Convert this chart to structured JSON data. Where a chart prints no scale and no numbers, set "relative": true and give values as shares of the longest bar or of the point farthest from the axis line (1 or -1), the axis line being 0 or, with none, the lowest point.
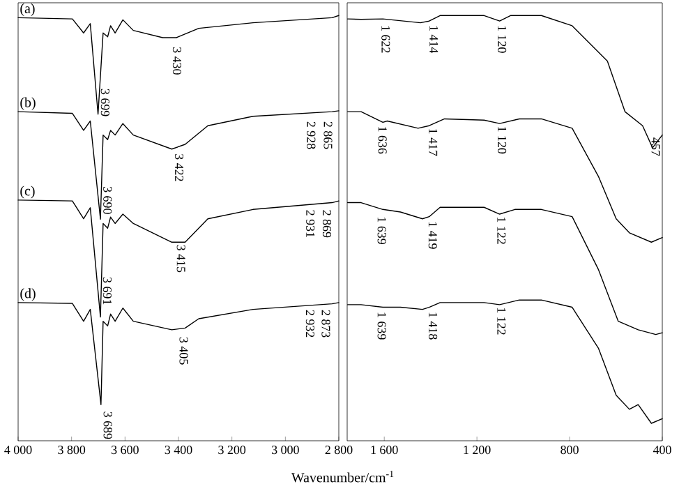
{
  "chart_data": [
    {
      "type": "line",
      "relative": true,
      "xlabel": "Wavenumber/cm$^{-1}$",
      "xlim": [
        4000,
        2800
      ],
      "xticks": [
        {
          "value": 4000,
          "label": "4 000"
        },
        {
          "value": 3800,
          "label": "3 800"
        },
        {
          "value": 3600,
          "label": "3 600"
        },
        {
          "value": 3400,
          "label": "3 400"
        },
        {
          "value": 3200,
          "label": "3 200"
        },
        {
          "value": 3000,
          "label": "3 000"
        },
        {
          "value": 2800,
          "label": "2 800"
        }
      ],
      "series": [
        {
          "name": "(a)",
          "color": "#000000",
          "x": [
            4000,
            3797,
            3755,
            3730,
            3701,
            3682,
            3665,
            3654,
            3637,
            3608,
            3569,
            3459,
            3408,
            3324,
            3121,
            2825,
            2800
          ],
          "values": [
            0.995,
            0.992,
            0.959,
            0.981,
            0.768,
            0.959,
            0.95,
            0.976,
            0.959,
            0.99,
            0.965,
            0.948,
            0.948,
            0.97,
            0.983,
            0.995,
            1.0
          ]
        },
        {
          "name": "(b)",
          "color": "#000000",
          "x": [
            4000,
            3797,
            3755,
            3730,
            3692,
            3682,
            3665,
            3654,
            3637,
            3608,
            3569,
            3425,
            3375,
            3290,
            3121,
            2825,
            2800
          ],
          "values": [
            0.774,
            0.77,
            0.73,
            0.752,
            0.521,
            0.719,
            0.708,
            0.73,
            0.719,
            0.746,
            0.719,
            0.686,
            0.697,
            0.741,
            0.763,
            0.774,
            0.776
          ]
        },
        {
          "name": "(c)",
          "color": "#000000",
          "x": [
            4000,
            3797,
            3755,
            3730,
            3692,
            3682,
            3665,
            3654,
            3637,
            3608,
            3569,
            3425,
            3375,
            3290,
            3121,
            2825,
            2800
          ],
          "values": [
            0.566,
            0.564,
            0.522,
            0.548,
            0.291,
            0.511,
            0.5,
            0.526,
            0.511,
            0.533,
            0.511,
            0.467,
            0.467,
            0.522,
            0.544,
            0.56,
            0.564
          ]
        },
        {
          "name": "(d)",
          "color": "#000000",
          "x": [
            4000,
            3797,
            3755,
            3730,
            3690,
            3682,
            3665,
            3654,
            3637,
            3608,
            3569,
            3425,
            3375,
            3324,
            3121,
            2825,
            2800
          ],
          "values": [
            0.325,
            0.323,
            0.281,
            0.309,
            0.085,
            0.281,
            0.27,
            0.298,
            0.281,
            0.312,
            0.281,
            0.261,
            0.265,
            0.287,
            0.309,
            0.322,
            0.325
          ]
        }
      ],
      "annotations": [
        {
          "text": "3 430",
          "x": 3430,
          "y": 0.932
        },
        {
          "text": "3 699",
          "x": 3699,
          "y": 0.834
        },
        {
          "text": "3 422",
          "x": 3422,
          "y": 0.681
        },
        {
          "text": "2 928",
          "x": 2928,
          "y": 0.757
        },
        {
          "text": "2 865",
          "x": 2865,
          "y": 0.757
        },
        {
          "text": "3 690",
          "x": 3690,
          "y": 0.604
        },
        {
          "text": "3 415",
          "x": 3415,
          "y": 0.467
        },
        {
          "text": "2 931",
          "x": 2931,
          "y": 0.549
        },
        {
          "text": "2 869",
          "x": 2869,
          "y": 0.549
        },
        {
          "text": "3 691",
          "x": 3691,
          "y": 0.391
        },
        {
          "text": "3 405",
          "x": 3405,
          "y": 0.25
        },
        {
          "text": "2 932",
          "x": 2932,
          "y": 0.314
        },
        {
          "text": "2 873",
          "x": 2873,
          "y": 0.314
        },
        {
          "text": "3 689",
          "x": 3689,
          "y": 0.075
        }
      ]
    },
    {
      "type": "line",
      "relative": true,
      "xlim": [
        1760,
        400
      ],
      "xticks": [
        {
          "value": 1600,
          "label": "1 600"
        },
        {
          "value": 1200,
          "label": "1 200"
        },
        800,
        400
      ],
      "series": [
        {
          "color": "#000000",
          "x": [
            1758,
            1700,
            1606,
            1444,
            1406,
            1359,
            1169,
            1102,
            1055,
            922,
            789,
            637,
            561,
            485,
            442,
            400
          ],
          "values": [
            0.992,
            0.991,
            0.992,
            0.983,
            0.987,
            1.0,
            1.0,
            0.987,
            1.0,
            1.0,
            0.976,
            0.893,
            0.774,
            0.741,
            0.689,
            0.719
          ]
        },
        {
          "color": "#000000",
          "x": [
            1758,
            1700,
            1606,
            1587,
            1454,
            1406,
            1340,
            1169,
            1102,
            1017,
            922,
            789,
            675,
            599,
            542,
            447,
            400
          ],
          "values": [
            0.774,
            0.774,
            0.749,
            0.752,
            0.735,
            0.741,
            0.757,
            0.754,
            0.746,
            0.757,
            0.757,
            0.735,
            0.621,
            0.522,
            0.489,
            0.467,
            0.478
          ]
        },
        {
          "color": "#000000",
          "x": [
            1758,
            1700,
            1606,
            1530,
            1435,
            1406,
            1359,
            1169,
            1102,
            1036,
            922,
            789,
            675,
            590,
            504,
            428,
            400
          ],
          "values": [
            0.56,
            0.56,
            0.544,
            0.538,
            0.522,
            0.527,
            0.549,
            0.549,
            0.533,
            0.544,
            0.544,
            0.527,
            0.402,
            0.281,
            0.261,
            0.25,
            0.254
          ]
        },
        {
          "color": "#000000",
          "x": [
            1758,
            1700,
            1606,
            1530,
            1435,
            1406,
            1359,
            1169,
            1102,
            1017,
            922,
            789,
            675,
            599,
            542,
            504,
            447,
            400
          ],
          "values": [
            0.32,
            0.32,
            0.314,
            0.314,
            0.309,
            0.314,
            0.325,
            0.325,
            0.32,
            0.331,
            0.331,
            0.314,
            0.217,
            0.107,
            0.074,
            0.085,
            0.041,
            0.052
          ]
        }
      ],
      "annotations": [
        {
          "text": "1 622",
          "x": 1622,
          "y": 0.983
        },
        {
          "text": "1 414",
          "x": 1414,
          "y": 0.983
        },
        {
          "text": "1 120",
          "x": 1120,
          "y": 0.983
        },
        {
          "text": "457",
          "x": 457,
          "y": 0.719
        },
        {
          "text": "1 636",
          "x": 1636,
          "y": 0.746
        },
        {
          "text": "1 417",
          "x": 1417,
          "y": 0.741
        },
        {
          "text": "1 120",
          "x": 1120,
          "y": 0.746
        },
        {
          "text": "1 639",
          "x": 1639,
          "y": 0.533
        },
        {
          "text": "1 419",
          "x": 1419,
          "y": 0.522
        },
        {
          "text": "1 122",
          "x": 1122,
          "y": 0.533
        },
        {
          "text": "1 639",
          "x": 1639,
          "y": 0.309
        },
        {
          "text": "1 418",
          "x": 1418,
          "y": 0.309
        },
        {
          "text": "1 122",
          "x": 1122,
          "y": 0.32
        }
      ]
    }
  ]
}
